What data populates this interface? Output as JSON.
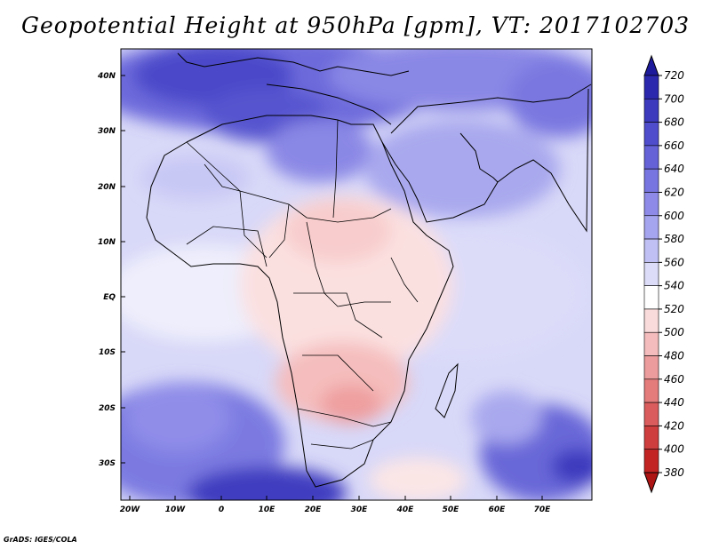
{
  "title": "Geopotential Height at 950hPa [gpm], VT: 2017102703",
  "credit": "GrADS: IGES/COLA",
  "lat_labels": [
    "40N",
    "30N",
    "20N",
    "10N",
    "EQ",
    "10S",
    "20S",
    "30S"
  ],
  "lon_labels": [
    "20W",
    "10W",
    "0",
    "10E",
    "20E",
    "30E",
    "40E",
    "50E",
    "60E",
    "70E"
  ],
  "colorbar": {
    "labels": [
      "720",
      "700",
      "680",
      "660",
      "640",
      "620",
      "600",
      "580",
      "560",
      "540",
      "520",
      "500",
      "480",
      "460",
      "440",
      "420",
      "400",
      "380"
    ],
    "colors": [
      "#1e1a9c",
      "#2b28ad",
      "#3d3abe",
      "#4f4dcc",
      "#6462d6",
      "#7775df",
      "#8d8be7",
      "#a5a4ee",
      "#c0c0f4",
      "#dcdcf9",
      "#ffffff",
      "#fadbdb",
      "#f4bcbc",
      "#ec9c9c",
      "#e47c7c",
      "#da5c5c",
      "#cf3e3e",
      "#c22424",
      "#ad1414"
    ]
  }
}
